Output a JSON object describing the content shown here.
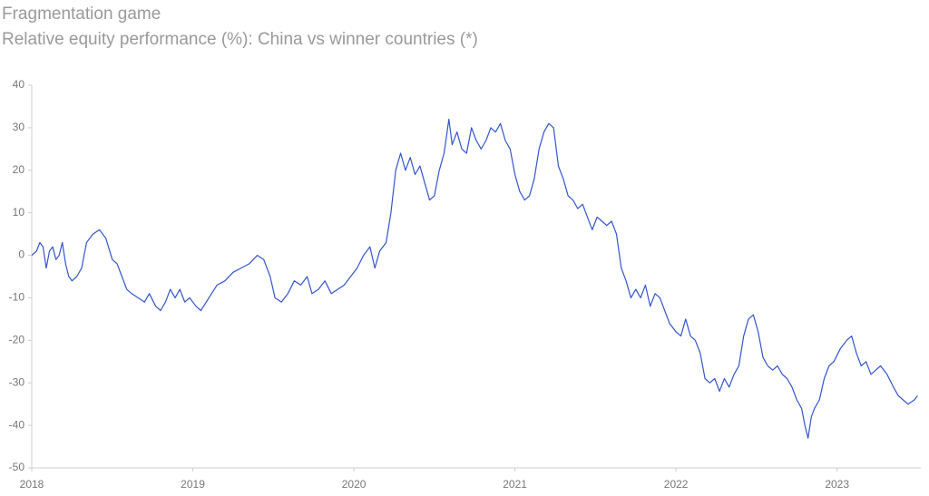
{
  "chart_data": {
    "type": "line",
    "title": "Fragmentation game",
    "subtitle": "Relative equity performance (%): China vs winner countries (*)",
    "x": [
      2018.0,
      2018.03,
      2018.05,
      2018.07,
      2018.09,
      2018.11,
      2018.13,
      2018.15,
      2018.17,
      2018.19,
      2018.21,
      2018.23,
      2018.25,
      2018.28,
      2018.31,
      2018.34,
      2018.38,
      2018.42,
      2018.46,
      2018.5,
      2018.53,
      2018.56,
      2018.59,
      2018.62,
      2018.66,
      2018.7,
      2018.73,
      2018.77,
      2018.8,
      2018.83,
      2018.86,
      2018.89,
      2018.92,
      2018.95,
      2018.98,
      2019.02,
      2019.05,
      2019.1,
      2019.15,
      2019.2,
      2019.25,
      2019.3,
      2019.35,
      2019.4,
      2019.44,
      2019.48,
      2019.51,
      2019.55,
      2019.59,
      2019.63,
      2019.67,
      2019.71,
      2019.74,
      2019.78,
      2019.82,
      2019.86,
      2019.9,
      2019.94,
      2019.98,
      2020.02,
      2020.06,
      2020.1,
      2020.13,
      2020.16,
      2020.2,
      2020.23,
      2020.26,
      2020.29,
      2020.32,
      2020.35,
      2020.38,
      2020.41,
      2020.44,
      2020.47,
      2020.5,
      2020.53,
      2020.56,
      2020.59,
      2020.61,
      2020.64,
      2020.67,
      2020.7,
      2020.73,
      2020.76,
      2020.79,
      2020.82,
      2020.85,
      2020.88,
      2020.91,
      2020.94,
      2020.97,
      2021.0,
      2021.03,
      2021.06,
      2021.09,
      2021.12,
      2021.15,
      2021.18,
      2021.21,
      2021.24,
      2021.27,
      2021.3,
      2021.33,
      2021.36,
      2021.39,
      2021.42,
      2021.45,
      2021.48,
      2021.51,
      2021.54,
      2021.57,
      2021.6,
      2021.63,
      2021.66,
      2021.69,
      2021.72,
      2021.75,
      2021.78,
      2021.81,
      2021.84,
      2021.87,
      2021.9,
      2021.93,
      2021.96,
      2022.0,
      2022.03,
      2022.06,
      2022.09,
      2022.12,
      2022.15,
      2022.18,
      2022.21,
      2022.24,
      2022.27,
      2022.3,
      2022.33,
      2022.36,
      2022.39,
      2022.42,
      2022.45,
      2022.48,
      2022.51,
      2022.54,
      2022.57,
      2022.6,
      2022.63,
      2022.66,
      2022.69,
      2022.72,
      2022.75,
      2022.78,
      2022.8,
      2022.82,
      2022.84,
      2022.86,
      2022.89,
      2022.92,
      2022.95,
      2022.98,
      2023.02,
      2023.06,
      2023.09,
      2023.12,
      2023.15,
      2023.18,
      2023.21,
      2023.24,
      2023.27,
      2023.31,
      2023.35,
      2023.38,
      2023.41,
      2023.44,
      2023.48,
      2023.5
    ],
    "series": [
      {
        "name": "China vs winner countries",
        "color": "#3355cc",
        "values": [
          0,
          1,
          3,
          2,
          -3,
          1,
          2,
          -1,
          0,
          3,
          -2,
          -5,
          -6,
          -5,
          -3,
          3,
          5,
          6,
          4,
          -1,
          -2,
          -5,
          -8,
          -9,
          -10,
          -11,
          -9,
          -12,
          -13,
          -11,
          -8,
          -10,
          -8,
          -11,
          -10,
          -12,
          -13,
          -10,
          -7,
          -6,
          -4,
          -3,
          -2,
          0,
          -1,
          -5,
          -10,
          -11,
          -9,
          -6,
          -7,
          -5,
          -9,
          -8,
          -6,
          -9,
          -8,
          -7,
          -5,
          -3,
          0,
          2,
          -3,
          1,
          3,
          10,
          20,
          24,
          20,
          23,
          19,
          21,
          17,
          13,
          14,
          20,
          24,
          32,
          26,
          29,
          25,
          24,
          30,
          27,
          25,
          27,
          30,
          29,
          31,
          27,
          25,
          19,
          15,
          13,
          14,
          18,
          25,
          29,
          31,
          30,
          21,
          18,
          14,
          13,
          11,
          12,
          9,
          6,
          9,
          8,
          7,
          8,
          5,
          -3,
          -6,
          -10,
          -8,
          -10,
          -7,
          -12,
          -9,
          -10,
          -13,
          -16,
          -18,
          -19,
          -15,
          -19,
          -20,
          -23,
          -29,
          -30,
          -29,
          -32,
          -29,
          -31,
          -28,
          -26,
          -19,
          -15,
          -14,
          -18,
          -24,
          -26,
          -27,
          -26,
          -28,
          -29,
          -31,
          -34,
          -36,
          -40,
          -43,
          -38,
          -36,
          -34,
          -29,
          -26,
          -25,
          -22,
          -20,
          -19,
          -23,
          -26,
          -25,
          -28,
          -27,
          -26,
          -28,
          -31,
          -33,
          -34,
          -35,
          -34,
          -33
        ]
      }
    ],
    "xlim": [
      2018,
      2023.52
    ],
    "xticks": [
      2018,
      2019,
      2020,
      2021,
      2022,
      2023
    ],
    "ylim": [
      -50,
      40
    ],
    "yticks": [
      -50,
      -40,
      -30,
      -20,
      -10,
      0,
      10,
      20,
      30,
      40
    ]
  }
}
